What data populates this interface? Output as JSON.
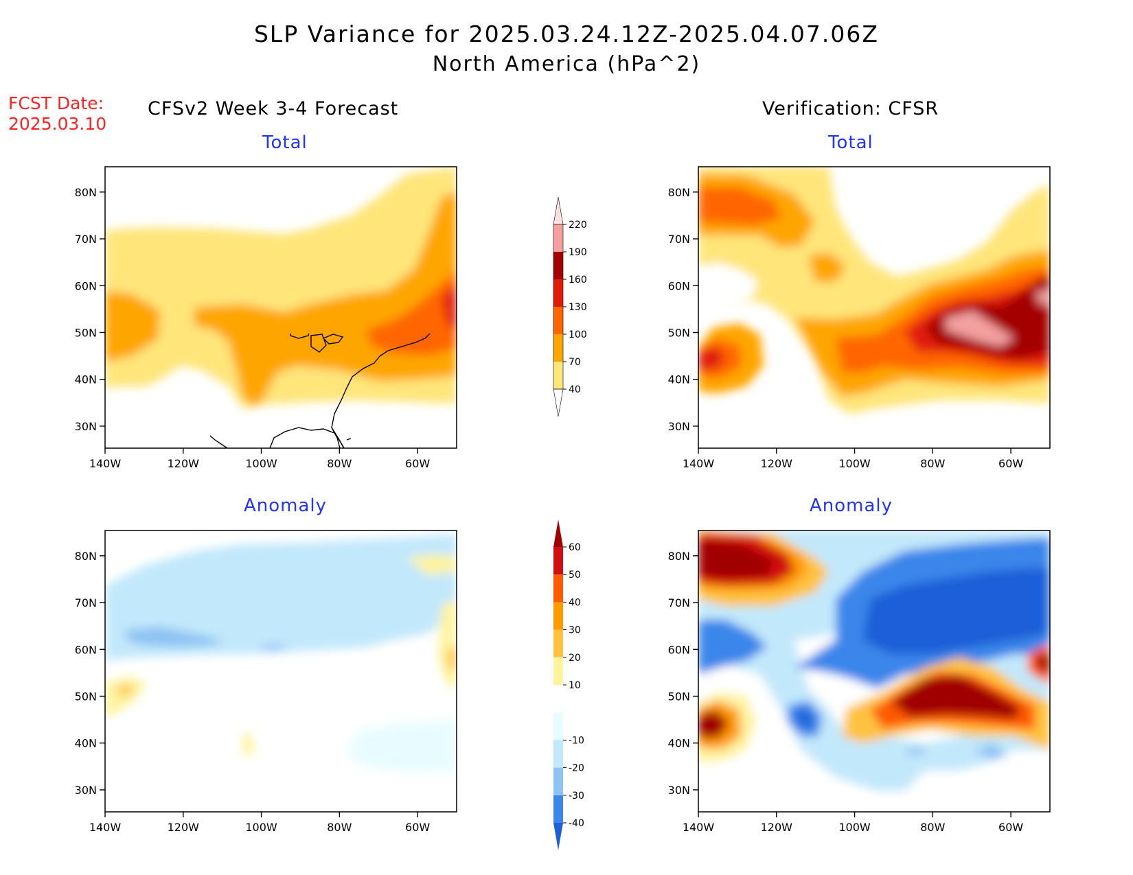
{
  "title": {
    "line1": "SLP Variance for 2025.03.24.12Z-2025.04.07.06Z",
    "line2": "North America (hPa^2)"
  },
  "fcst_date": {
    "label": "FCST Date:",
    "value": "2025.03.10"
  },
  "columns": {
    "left": "CFSv2 Week 3-4 Forecast",
    "right": "Verification: CFSR"
  },
  "panels": {
    "total_label": "Total",
    "anomaly_label": "Anomaly"
  },
  "axes": {
    "lat_labels": [
      "80N",
      "70N",
      "60N",
      "50N",
      "40N",
      "30N"
    ],
    "lon_labels": [
      "140W",
      "120W",
      "100W",
      "80W",
      "60W"
    ]
  },
  "colorbars": {
    "total": {
      "levels": [
        "40",
        "70",
        "100",
        "130",
        "160",
        "190",
        "220"
      ],
      "colors": [
        "#ffe57a",
        "#ffa500",
        "#ff6600",
        "#e01b0a",
        "#a50000",
        "#f4a0a0",
        "#fde0e0"
      ]
    },
    "anomaly": {
      "levels": [
        "-40",
        "-30",
        "-20",
        "-10",
        "10",
        "20",
        "30",
        "40",
        "50",
        "60"
      ],
      "colors": [
        "#1e5fd8",
        "#3b86ea",
        "#8ec3f3",
        "#c2e8fb",
        "#e8fcff",
        "#ffffff",
        "#fff3a0",
        "#ffc240",
        "#ff9a00",
        "#ff5a00",
        "#d01010",
        "#a00000"
      ]
    }
  }
}
